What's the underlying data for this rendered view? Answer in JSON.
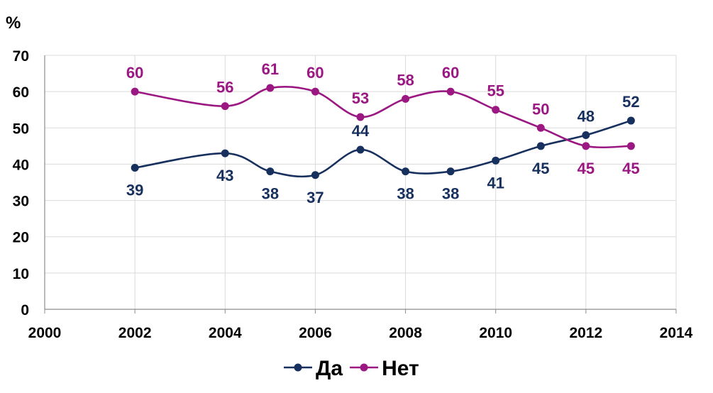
{
  "chart_data": {
    "type": "line",
    "title": "",
    "y_unit": "%",
    "xlabel": "",
    "ylabel": "",
    "xlim": [
      2000,
      2014
    ],
    "ylim": [
      0,
      70
    ],
    "x_ticks": [
      "2000",
      "2002",
      "2004",
      "2006",
      "2008",
      "2010",
      "2012",
      "2014"
    ],
    "y_ticks": [
      "0",
      "10",
      "20",
      "30",
      "40",
      "50",
      "60",
      "70"
    ],
    "grid": true,
    "smooth": true,
    "legend_position": "bottom",
    "series": [
      {
        "name": "Да",
        "color": "#17305E",
        "x": [
          2002,
          2004,
          2005,
          2006,
          2007,
          2008,
          2009,
          2010,
          2011,
          2012,
          2013
        ],
        "values": [
          39,
          43,
          38,
          37,
          44,
          38,
          38,
          41,
          45,
          48,
          52
        ],
        "labels": [
          "39",
          "43",
          "38",
          "37",
          "44",
          "38",
          "38",
          "41",
          "45",
          "48",
          "52"
        ],
        "label_side": [
          "below",
          "below",
          "below",
          "below",
          "above",
          "below",
          "below",
          "below",
          "below",
          "above",
          "above"
        ]
      },
      {
        "name": "Нет",
        "color": "#9B1883",
        "x": [
          2002,
          2004,
          2005,
          2006,
          2007,
          2008,
          2009,
          2010,
          2011,
          2012,
          2013
        ],
        "values": [
          60,
          56,
          61,
          60,
          53,
          58,
          60,
          55,
          50,
          45,
          45
        ],
        "labels": [
          "60",
          "56",
          "61",
          "60",
          "53",
          "58",
          "60",
          "55",
          "50",
          "45",
          "45"
        ],
        "label_side": [
          "above",
          "above",
          "above",
          "above",
          "above",
          "above",
          "above",
          "above",
          "above",
          "below",
          "below"
        ]
      }
    ]
  }
}
